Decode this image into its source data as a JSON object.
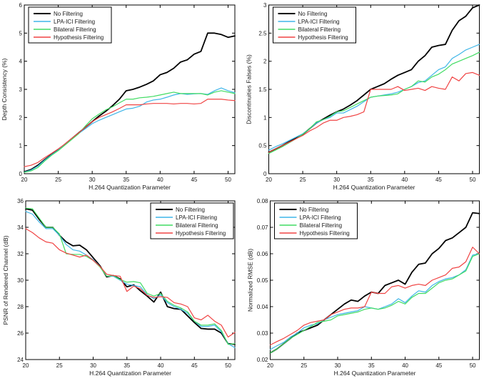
{
  "figure": {
    "background": "#ffffff",
    "axis_color": "#000000",
    "tick_label_color": "#1a1a1a"
  },
  "legend_labels": [
    "No Filtering",
    "LPA-ICI Filtering",
    "Bilateral Filtering",
    "Hypothesis Filtering"
  ],
  "series_colors": {
    "no_filtering": "#000000",
    "lpa_ici": "#3fb6e8",
    "bilateral": "#41dc63",
    "hypothesis": "#f04343"
  },
  "chart_data": [
    {
      "type": "line",
      "title": "",
      "xlabel": "H.264 Quantization Parameter",
      "ylabel": "Depth Consistency (%)",
      "xlim": [
        20,
        51
      ],
      "ylim": [
        0,
        6
      ],
      "xticks": [
        20,
        25,
        30,
        35,
        40,
        45,
        50
      ],
      "yticks": [
        0,
        1,
        2,
        3,
        4,
        5,
        6
      ],
      "grid": false,
      "legend_position": "nw",
      "x": [
        20,
        21,
        22,
        23,
        24,
        25,
        26,
        27,
        28,
        29,
        30,
        31,
        32,
        33,
        34,
        35,
        36,
        37,
        38,
        39,
        40,
        41,
        42,
        43,
        44,
        45,
        46,
        47,
        48,
        49,
        50,
        51
      ],
      "series": [
        {
          "name": "No Filtering",
          "color": "#000000",
          "width": 1.8,
          "values": [
            0.07,
            0.15,
            0.3,
            0.5,
            0.68,
            0.85,
            1.05,
            1.25,
            1.45,
            1.65,
            1.85,
            2.05,
            2.22,
            2.42,
            2.65,
            2.95,
            3.0,
            3.08,
            3.18,
            3.3,
            3.52,
            3.6,
            3.75,
            3.97,
            4.05,
            4.25,
            4.35,
            5.0,
            5.0,
            4.95,
            4.85,
            4.9
          ]
        },
        {
          "name": "LPA-ICI Filtering",
          "color": "#3fb6e8",
          "width": 1.2,
          "values": [
            0.06,
            0.13,
            0.27,
            0.48,
            0.67,
            0.84,
            1.04,
            1.24,
            1.43,
            1.6,
            1.78,
            1.9,
            2.0,
            2.1,
            2.2,
            2.3,
            2.33,
            2.4,
            2.55,
            2.62,
            2.65,
            2.72,
            2.8,
            2.85,
            2.82,
            2.84,
            2.85,
            2.82,
            2.95,
            3.05,
            2.95,
            2.88
          ]
        },
        {
          "name": "Bilateral Filtering",
          "color": "#41dc63",
          "width": 1.2,
          "values": [
            0.05,
            0.1,
            0.22,
            0.45,
            0.65,
            0.82,
            1.02,
            1.22,
            1.42,
            1.7,
            1.95,
            2.12,
            2.27,
            2.38,
            2.52,
            2.65,
            2.65,
            2.7,
            2.72,
            2.75,
            2.8,
            2.85,
            2.9,
            2.85,
            2.85,
            2.85,
            2.85,
            2.8,
            2.9,
            2.95,
            2.9,
            2.85
          ]
        },
        {
          "name": "Hypothesis Filtering",
          "color": "#f04343",
          "width": 1.2,
          "values": [
            0.25,
            0.3,
            0.4,
            0.57,
            0.72,
            0.88,
            1.06,
            1.26,
            1.45,
            1.65,
            1.85,
            2.0,
            2.1,
            2.2,
            2.32,
            2.45,
            2.45,
            2.45,
            2.48,
            2.5,
            2.5,
            2.5,
            2.48,
            2.5,
            2.5,
            2.48,
            2.5,
            2.65,
            2.65,
            2.65,
            2.62,
            2.6
          ]
        }
      ]
    },
    {
      "type": "line",
      "title": "",
      "xlabel": "H.264 Quantization Parameter",
      "ylabel": "Discontinuities Falses (%)",
      "xlim": [
        20,
        51
      ],
      "ylim": [
        0,
        3
      ],
      "xticks": [
        20,
        25,
        30,
        35,
        40,
        45,
        50
      ],
      "yticks": [
        0,
        0.5,
        1,
        1.5,
        2,
        2.5,
        3
      ],
      "grid": false,
      "legend_position": "nw",
      "x": [
        20,
        21,
        22,
        23,
        24,
        25,
        26,
        27,
        28,
        29,
        30,
        31,
        32,
        33,
        34,
        35,
        36,
        37,
        38,
        39,
        40,
        41,
        42,
        43,
        44,
        45,
        46,
        47,
        48,
        49,
        50,
        51
      ],
      "series": [
        {
          "name": "No Filtering",
          "color": "#000000",
          "width": 1.8,
          "values": [
            0.38,
            0.44,
            0.5,
            0.57,
            0.63,
            0.7,
            0.8,
            0.9,
            0.97,
            1.04,
            1.1,
            1.15,
            1.22,
            1.3,
            1.4,
            1.5,
            1.55,
            1.6,
            1.68,
            1.75,
            1.8,
            1.85,
            2.0,
            2.1,
            2.25,
            2.28,
            2.3,
            2.55,
            2.72,
            2.8,
            2.95,
            3.0
          ]
        },
        {
          "name": "LPA-ICI Filtering",
          "color": "#3fb6e8",
          "width": 1.2,
          "values": [
            0.42,
            0.48,
            0.53,
            0.59,
            0.65,
            0.71,
            0.8,
            0.9,
            0.96,
            1.0,
            1.08,
            1.08,
            1.14,
            1.2,
            1.28,
            1.36,
            1.38,
            1.4,
            1.42,
            1.45,
            1.5,
            1.55,
            1.62,
            1.65,
            1.75,
            1.85,
            1.9,
            2.05,
            2.12,
            2.2,
            2.25,
            2.3
          ]
        },
        {
          "name": "Bilateral Filtering",
          "color": "#41dc63",
          "width": 1.2,
          "values": [
            0.36,
            0.42,
            0.48,
            0.55,
            0.62,
            0.7,
            0.8,
            0.92,
            0.96,
            1.02,
            1.1,
            1.12,
            1.18,
            1.24,
            1.3,
            1.36,
            1.38,
            1.39,
            1.4,
            1.42,
            1.5,
            1.55,
            1.65,
            1.63,
            1.72,
            1.77,
            1.85,
            1.95,
            2.0,
            2.05,
            2.1,
            2.16
          ]
        },
        {
          "name": "Hypothesis Filtering",
          "color": "#f04343",
          "width": 1.2,
          "values": [
            0.38,
            0.44,
            0.5,
            0.56,
            0.62,
            0.68,
            0.76,
            0.82,
            0.9,
            0.95,
            0.95,
            1.0,
            1.02,
            1.05,
            1.1,
            1.5,
            1.5,
            1.5,
            1.5,
            1.55,
            1.48,
            1.5,
            1.52,
            1.48,
            1.55,
            1.52,
            1.5,
            1.72,
            1.65,
            1.78,
            1.8,
            1.75
          ]
        }
      ]
    },
    {
      "type": "line",
      "title": "",
      "xlabel": "H.264 Quantization Parameter",
      "ylabel": "PSNR of Rendered Channel (dB)",
      "xlim": [
        20,
        51
      ],
      "ylim": [
        24,
        36
      ],
      "xticks": [
        20,
        25,
        30,
        35,
        40,
        45,
        50
      ],
      "yticks": [
        24,
        26,
        28,
        30,
        32,
        34,
        36
      ],
      "grid": false,
      "legend_position": "ne",
      "x": [
        20,
        21,
        22,
        23,
        24,
        25,
        26,
        27,
        28,
        29,
        30,
        31,
        32,
        33,
        34,
        35,
        36,
        37,
        38,
        39,
        40,
        41,
        42,
        43,
        44,
        45,
        46,
        47,
        48,
        49,
        50,
        51
      ],
      "series": [
        {
          "name": "No Filtering",
          "color": "#000000",
          "width": 1.8,
          "values": [
            35.4,
            35.3,
            34.6,
            34.0,
            34.0,
            33.4,
            32.9,
            32.6,
            32.65,
            32.3,
            31.7,
            31.1,
            30.25,
            30.35,
            30.1,
            29.5,
            29.65,
            29.2,
            28.8,
            28.35,
            29.1,
            28.0,
            27.85,
            27.8,
            27.3,
            26.8,
            26.35,
            26.3,
            26.3,
            26.0,
            25.2,
            25.15
          ]
        },
        {
          "name": "LPA-ICI Filtering",
          "color": "#3fb6e8",
          "width": 1.2,
          "values": [
            35.2,
            35.0,
            34.4,
            33.9,
            33.9,
            33.4,
            32.7,
            32.3,
            32.2,
            31.9,
            31.55,
            31.05,
            30.3,
            30.3,
            30.0,
            29.7,
            29.6,
            29.5,
            28.9,
            28.6,
            28.9,
            28.3,
            28.0,
            27.8,
            27.5,
            26.9,
            26.5,
            26.5,
            26.6,
            26.1,
            25.2,
            24.9
          ]
        },
        {
          "name": "Bilateral Filtering",
          "color": "#41dc63",
          "width": 1.2,
          "values": [
            35.45,
            35.4,
            34.7,
            34.0,
            34.0,
            33.5,
            32.0,
            31.95,
            31.95,
            31.8,
            31.5,
            31.0,
            30.3,
            30.35,
            30.05,
            29.85,
            29.9,
            29.8,
            29.0,
            28.8,
            29.0,
            28.4,
            28.1,
            27.9,
            27.6,
            26.9,
            26.6,
            26.6,
            26.7,
            26.2,
            25.15,
            25.2
          ]
        },
        {
          "name": "Hypothesis Filtering",
          "color": "#f04343",
          "width": 1.2,
          "values": [
            33.9,
            33.6,
            33.2,
            32.9,
            32.8,
            32.3,
            32.05,
            31.9,
            31.75,
            31.9,
            31.5,
            31.05,
            30.45,
            30.35,
            30.3,
            29.15,
            29.55,
            29.35,
            28.85,
            28.7,
            28.75,
            28.7,
            28.3,
            28.2,
            28.0,
            27.15,
            27.0,
            27.35,
            26.9,
            26.6,
            25.7,
            26.05
          ]
        }
      ]
    },
    {
      "type": "line",
      "title": "",
      "xlabel": "H.264 Quantization Parameter",
      "ylabel": "Normalized RMSE (dB)",
      "xlim": [
        20,
        51
      ],
      "ylim": [
        0.02,
        0.08
      ],
      "xticks": [
        20,
        25,
        30,
        35,
        40,
        45,
        50
      ],
      "yticks": [
        0.02,
        0.03,
        0.04,
        0.05,
        0.06,
        0.07,
        0.08
      ],
      "grid": false,
      "legend_position": "nw",
      "x": [
        20,
        21,
        22,
        23,
        24,
        25,
        26,
        27,
        28,
        29,
        30,
        31,
        32,
        33,
        34,
        35,
        36,
        37,
        38,
        39,
        40,
        41,
        42,
        43,
        44,
        45,
        46,
        47,
        48,
        49,
        50,
        51
      ],
      "series": [
        {
          "name": "No Filtering",
          "color": "#000000",
          "width": 1.8,
          "values": [
            0.0225,
            0.024,
            0.026,
            0.028,
            0.03,
            0.031,
            0.032,
            0.033,
            0.035,
            0.037,
            0.039,
            0.041,
            0.0425,
            0.042,
            0.044,
            0.0455,
            0.045,
            0.048,
            0.049,
            0.05,
            0.0485,
            0.053,
            0.056,
            0.0565,
            0.06,
            0.062,
            0.065,
            0.066,
            0.068,
            0.07,
            0.0755,
            0.0752
          ]
        },
        {
          "name": "LPA-ICI Filtering",
          "color": "#3fb6e8",
          "width": 1.2,
          "values": [
            0.0238,
            0.0252,
            0.0265,
            0.0285,
            0.03,
            0.032,
            0.033,
            0.0335,
            0.035,
            0.036,
            0.037,
            0.0375,
            0.038,
            0.0385,
            0.04,
            0.0395,
            0.039,
            0.04,
            0.041,
            0.043,
            0.0415,
            0.044,
            0.046,
            0.0455,
            0.048,
            0.0495,
            0.0505,
            0.051,
            0.052,
            0.054,
            0.0595,
            0.06
          ]
        },
        {
          "name": "Bilateral Filtering",
          "color": "#41dc63",
          "width": 1.2,
          "values": [
            0.0225,
            0.024,
            0.026,
            0.028,
            0.0295,
            0.031,
            0.0325,
            0.034,
            0.0345,
            0.035,
            0.0365,
            0.037,
            0.0375,
            0.038,
            0.039,
            0.0395,
            0.039,
            0.0395,
            0.0405,
            0.042,
            0.041,
            0.0435,
            0.045,
            0.045,
            0.047,
            0.049,
            0.05,
            0.0505,
            0.052,
            0.0535,
            0.059,
            0.06
          ]
        },
        {
          "name": "Hypothesis Filtering",
          "color": "#f04343",
          "width": 1.2,
          "values": [
            0.0255,
            0.0268,
            0.028,
            0.0295,
            0.031,
            0.033,
            0.034,
            0.0345,
            0.035,
            0.037,
            0.038,
            0.039,
            0.0395,
            0.0395,
            0.04,
            0.0455,
            0.045,
            0.045,
            0.0475,
            0.048,
            0.047,
            0.048,
            0.0485,
            0.048,
            0.05,
            0.051,
            0.052,
            0.0545,
            0.055,
            0.057,
            0.0625,
            0.06
          ]
        }
      ]
    }
  ]
}
